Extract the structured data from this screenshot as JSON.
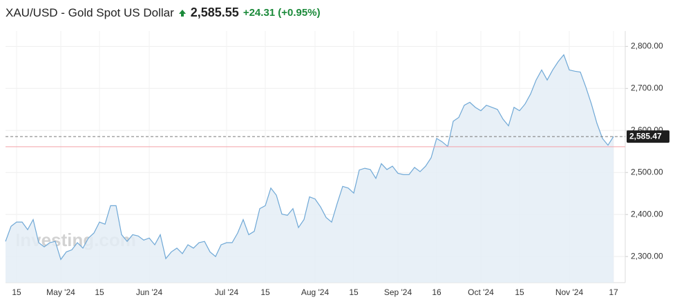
{
  "chart_data": {
    "type": "line",
    "title": "XAU/USD - Gold Spot US Dollar",
    "price": "2,585.55",
    "change": "+24.31 (+0.95%)",
    "watermark": "Investing.com",
    "categories": [
      null,
      null,
      "15",
      null,
      null,
      null,
      null,
      null,
      null,
      null,
      "May '24",
      null,
      null,
      null,
      null,
      null,
      null,
      "15",
      null,
      null,
      null,
      null,
      null,
      null,
      null,
      null,
      "Jun '24",
      null,
      null,
      null,
      null,
      null,
      null,
      null,
      null,
      null,
      null,
      null,
      null,
      null,
      "Jul '24",
      null,
      null,
      null,
      null,
      null,
      null,
      "15",
      null,
      null,
      null,
      null,
      null,
      null,
      null,
      null,
      "Aug '24",
      null,
      null,
      null,
      null,
      null,
      null,
      "15",
      null,
      null,
      null,
      null,
      null,
      null,
      null,
      "Sep '24",
      null,
      null,
      null,
      null,
      null,
      null,
      "16",
      null,
      null,
      null,
      null,
      null,
      null,
      null,
      "Oct '24",
      null,
      null,
      null,
      null,
      null,
      null,
      "15",
      null,
      null,
      null,
      null,
      null,
      null,
      null,
      null,
      "Nov '24",
      null,
      null,
      null,
      null,
      null,
      null,
      null,
      "17"
    ],
    "series": [
      {
        "name": "XAU/USD",
        "color": "#6fa8d6",
        "values": [
          2336,
          2372,
          2382,
          2382,
          2364,
          2388,
          2333,
          2323,
          2333,
          2336,
          2293,
          2311,
          2316,
          2333,
          2320,
          2344,
          2356,
          2382,
          2377,
          2421,
          2421,
          2352,
          2336,
          2352,
          2349,
          2339,
          2344,
          2328,
          2352,
          2295,
          2311,
          2320,
          2307,
          2328,
          2320,
          2333,
          2336,
          2311,
          2300,
          2328,
          2333,
          2333,
          2356,
          2388,
          2352,
          2360,
          2414,
          2421,
          2463,
          2446,
          2401,
          2398,
          2414,
          2369,
          2388,
          2442,
          2437,
          2418,
          2393,
          2382,
          2426,
          2467,
          2463,
          2451,
          2506,
          2510,
          2507,
          2486,
          2521,
          2507,
          2515,
          2498,
          2495,
          2495,
          2512,
          2502,
          2515,
          2535,
          2581,
          2573,
          2562,
          2622,
          2631,
          2660,
          2667,
          2655,
          2647,
          2660,
          2655,
          2650,
          2627,
          2611,
          2655,
          2647,
          2663,
          2687,
          2720,
          2744,
          2720,
          2744,
          2764,
          2780,
          2744,
          2741,
          2739,
          2703,
          2663,
          2617,
          2581,
          2565,
          2585.47
        ]
      }
    ],
    "last_value": {
      "value": 2585.47,
      "label": "2,585.47"
    },
    "previous_close": 2561.24,
    "ylim": [
      2237.9,
      2836.6
    ],
    "yticks": [
      {
        "value": 2300,
        "label": "2,300.00"
      },
      {
        "value": 2400,
        "label": "2,400.00"
      },
      {
        "value": 2500,
        "label": "2,500.00"
      },
      {
        "value": 2600,
        "label": "2,600.00"
      },
      {
        "value": 2700,
        "label": "2,700.00"
      },
      {
        "value": 2800,
        "label": "2,800.00"
      }
    ],
    "grid": true
  }
}
